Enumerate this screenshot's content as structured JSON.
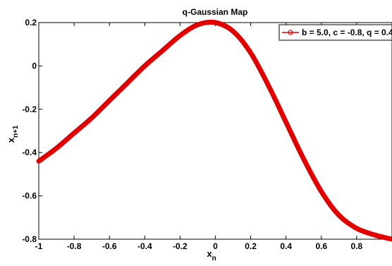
{
  "chart_data": {
    "type": "line",
    "title": "q-Gaussian Map",
    "xlabel": "x",
    "xlabel_sub": "n",
    "ylabel": "x",
    "ylabel_sub": "n+1",
    "xlim": [
      -1,
      1
    ],
    "ylim": [
      -0.8,
      0.2
    ],
    "xticks": [
      "-1",
      "-0.8",
      "-0.6",
      "-0.4",
      "-0.2",
      "0",
      "0.2",
      "0.4",
      "0.6",
      "0.8"
    ],
    "yticks": [
      "0.2",
      "0",
      "-0.2",
      "-0.4",
      "-0.6",
      "-0.8"
    ],
    "grid": false,
    "legend_position": "top-right",
    "series": [
      {
        "name": "b = 5.0, c = -0.8, q = 0.4",
        "color": "#e00000",
        "marker": "circle",
        "x": [
          -1.0,
          -0.9,
          -0.8,
          -0.7,
          -0.6,
          -0.5,
          -0.4,
          -0.3,
          -0.2,
          -0.1,
          0.0,
          0.1,
          0.2,
          0.3,
          0.4,
          0.5,
          0.6,
          0.7,
          0.8,
          0.9,
          1.0
        ],
        "y": [
          -0.44,
          -0.38,
          -0.31,
          -0.24,
          -0.16,
          -0.08,
          0.0,
          0.07,
          0.14,
          0.19,
          0.2,
          0.16,
          0.06,
          -0.09,
          -0.26,
          -0.43,
          -0.58,
          -0.69,
          -0.75,
          -0.78,
          -0.8
        ]
      }
    ]
  }
}
